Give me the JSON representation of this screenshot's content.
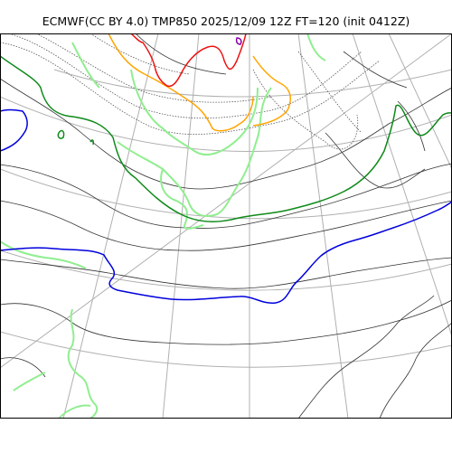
{
  "title": "ECMWF(CC BY 4.0) TMP850 2025/12/09 12Z FT=120 (init 0412Z)",
  "colors": {
    "background": "#ffffff",
    "graticule": "#b0b0b0",
    "coastline": "#333333",
    "isotherm_dotted": "#555555",
    "isotherm_green_dark": "#0f8a1a",
    "isotherm_blue": "#0000dd",
    "isotherm_orange": "#ffa500",
    "isotherm_red": "#ee1111",
    "isotherm_purple": "#8a00aa",
    "land_contour_green": "#90ee90"
  }
}
